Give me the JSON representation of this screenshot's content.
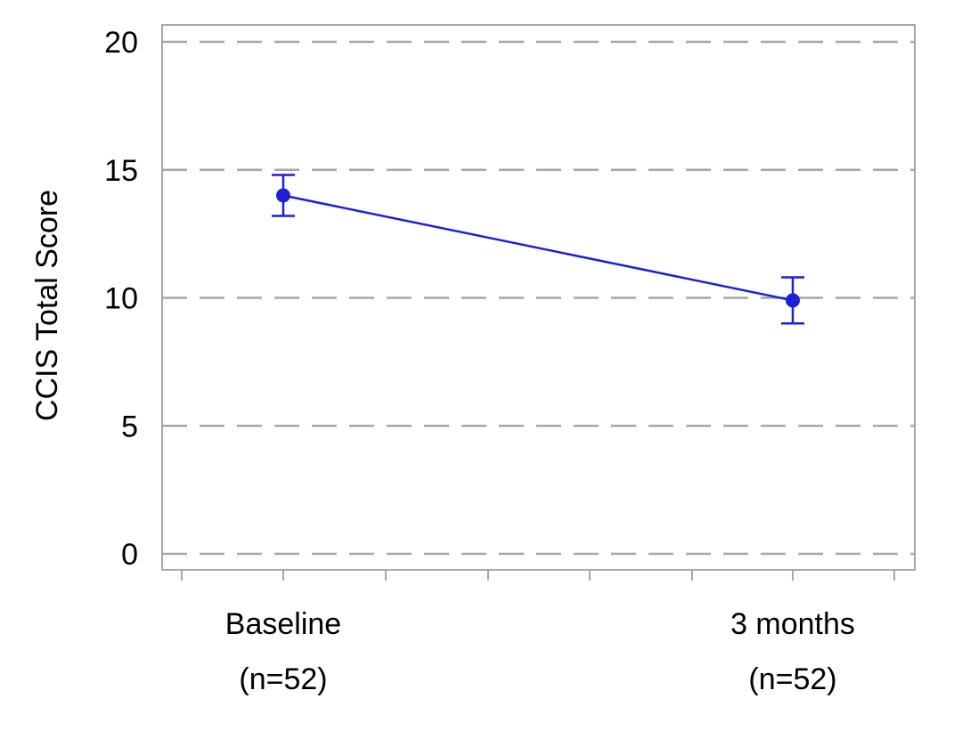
{
  "chart_data": {
    "type": "line",
    "title": "",
    "xlabel": "",
    "ylabel": "CCIS Total Score",
    "ylim": [
      0,
      20
    ],
    "yticks": [
      0,
      5,
      10,
      15,
      20
    ],
    "grid": "horizontal-dashed",
    "categories": [
      {
        "lines": [
          "Baseline",
          "(n=52)"
        ]
      },
      {
        "lines": [
          "3 months",
          "(n=52)"
        ]
      }
    ],
    "series": [
      {
        "values": [
          14.0,
          9.9
        ],
        "error_low": [
          13.2,
          9.0
        ],
        "error_high": [
          14.8,
          10.8
        ]
      }
    ]
  },
  "colors": {
    "series": "#1f1fd6",
    "grid": "#a6a6a6",
    "frame": "#a6a6a6"
  }
}
